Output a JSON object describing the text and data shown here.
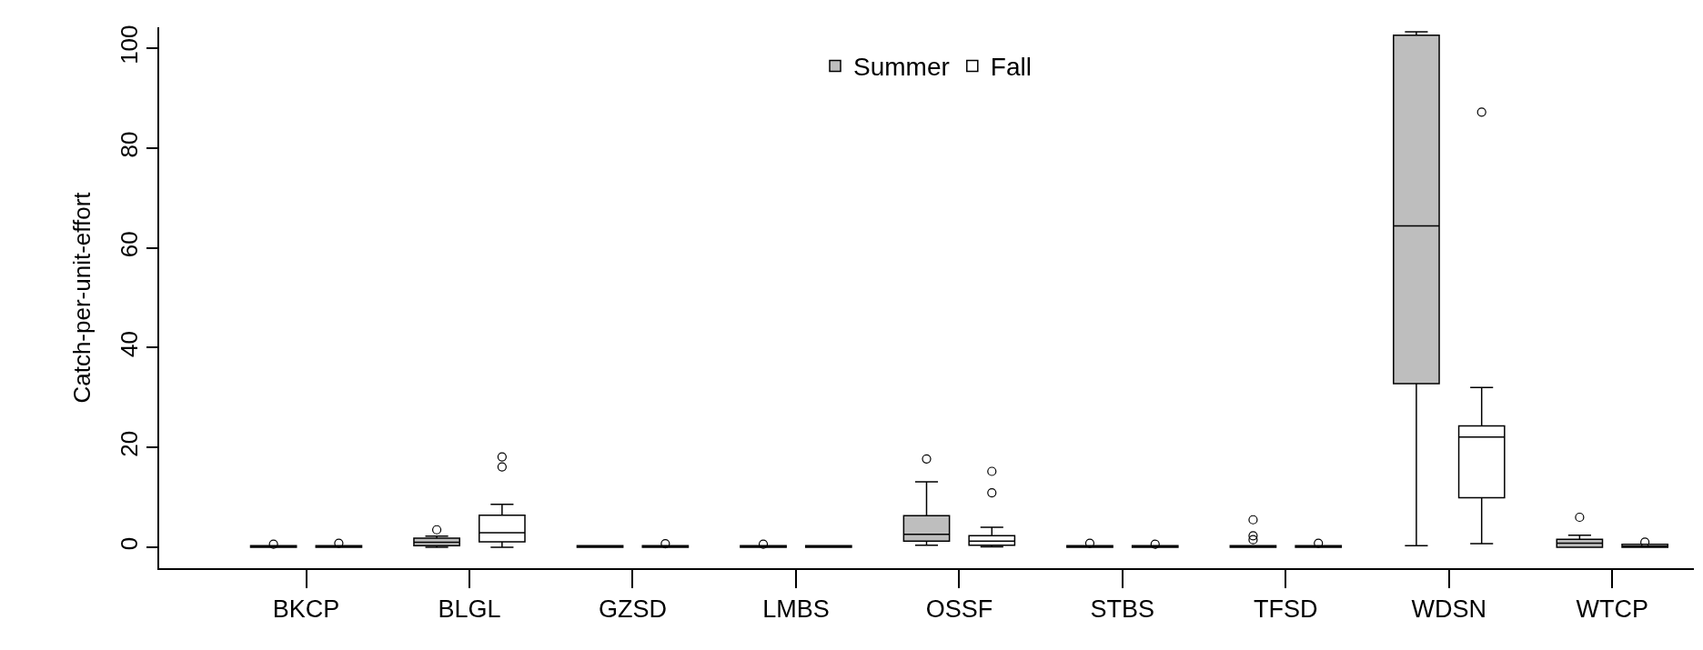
{
  "chart_data": {
    "type": "box",
    "ylabel": "Catch-per-unit-effort",
    "categories": [
      "BKCP",
      "BLGL",
      "GZSD",
      "LMBS",
      "OSSF",
      "STBS",
      "TFSD",
      "WDSN",
      "WTCP"
    ],
    "ylim": [
      -4.2,
      104.2
    ],
    "yticks": [
      0,
      20,
      40,
      60,
      80,
      100
    ],
    "grid": false,
    "legend": "top",
    "marker": "circle",
    "series": [
      {
        "name": "Summer",
        "color": "#bebebe",
        "boxes": [
          {
            "low": 0,
            "q1": 0,
            "median": 0,
            "q3": 0.3,
            "high": 0.3,
            "outliers": [
              0.6
            ]
          },
          {
            "low": 0,
            "q1": 0.3,
            "median": 1,
            "q3": 1.8,
            "high": 2.2,
            "outliers": [
              3.5
            ]
          },
          {
            "low": 0,
            "q1": 0,
            "median": 0,
            "q3": 0.3,
            "high": 0.3
          },
          {
            "low": 0,
            "q1": 0,
            "median": 0,
            "q3": 0.3,
            "high": 0.3,
            "outliers": [
              0.6
            ]
          },
          {
            "low": 0.4,
            "q1": 1.2,
            "median": 2.6,
            "q3": 6.3,
            "high": 13.1,
            "outliers": [
              17.7
            ]
          },
          {
            "low": 0,
            "q1": 0,
            "median": 0,
            "q3": 0.3,
            "high": 0.3,
            "outliers": [
              0.8
            ]
          },
          {
            "low": 0,
            "q1": 0,
            "median": 0,
            "q3": 0.3,
            "high": 0.3,
            "outliers": [
              1.5,
              2.3,
              5.5
            ]
          },
          {
            "low": 0.3,
            "q1": 32.8,
            "median": 64.4,
            "q3": 102.6,
            "high": 103.3
          },
          {
            "low": 0,
            "q1": 0,
            "median": 0.8,
            "q3": 1.6,
            "high": 2.4,
            "outliers": [
              6
            ]
          }
        ]
      },
      {
        "name": "Fall",
        "color": "#ffffff",
        "boxes": [
          {
            "low": 0,
            "q1": 0,
            "median": 0,
            "q3": 0.3,
            "high": 0.3,
            "outliers": [
              0.8
            ]
          },
          {
            "low": 0,
            "q1": 1.1,
            "median": 2.9,
            "q3": 6.4,
            "high": 8.6,
            "outliers": [
              16.1,
              18.1
            ]
          },
          {
            "low": 0,
            "q1": 0,
            "median": 0,
            "q3": 0.3,
            "high": 0.3,
            "outliers": [
              0.7
            ]
          },
          {
            "low": 0,
            "q1": 0,
            "median": 0,
            "q3": 0.3,
            "high": 0.3
          },
          {
            "low": 0.1,
            "q1": 0.4,
            "median": 1.2,
            "q3": 2.3,
            "high": 4,
            "outliers": [
              10.9,
              15.2
            ]
          },
          {
            "low": 0,
            "q1": 0,
            "median": 0,
            "q3": 0.3,
            "high": 0.3,
            "outliers": [
              0.6
            ]
          },
          {
            "low": 0,
            "q1": 0,
            "median": 0,
            "q3": 0.3,
            "high": 0.3,
            "outliers": [
              0.8
            ]
          },
          {
            "low": 0.7,
            "q1": 9.9,
            "median": 22.1,
            "q3": 24.3,
            "high": 32,
            "outliers": [
              87.2
            ]
          },
          {
            "low": 0,
            "q1": 0,
            "median": 0.2,
            "q3": 0.6,
            "high": 0.6,
            "outliers": [
              1
            ]
          }
        ]
      }
    ]
  }
}
